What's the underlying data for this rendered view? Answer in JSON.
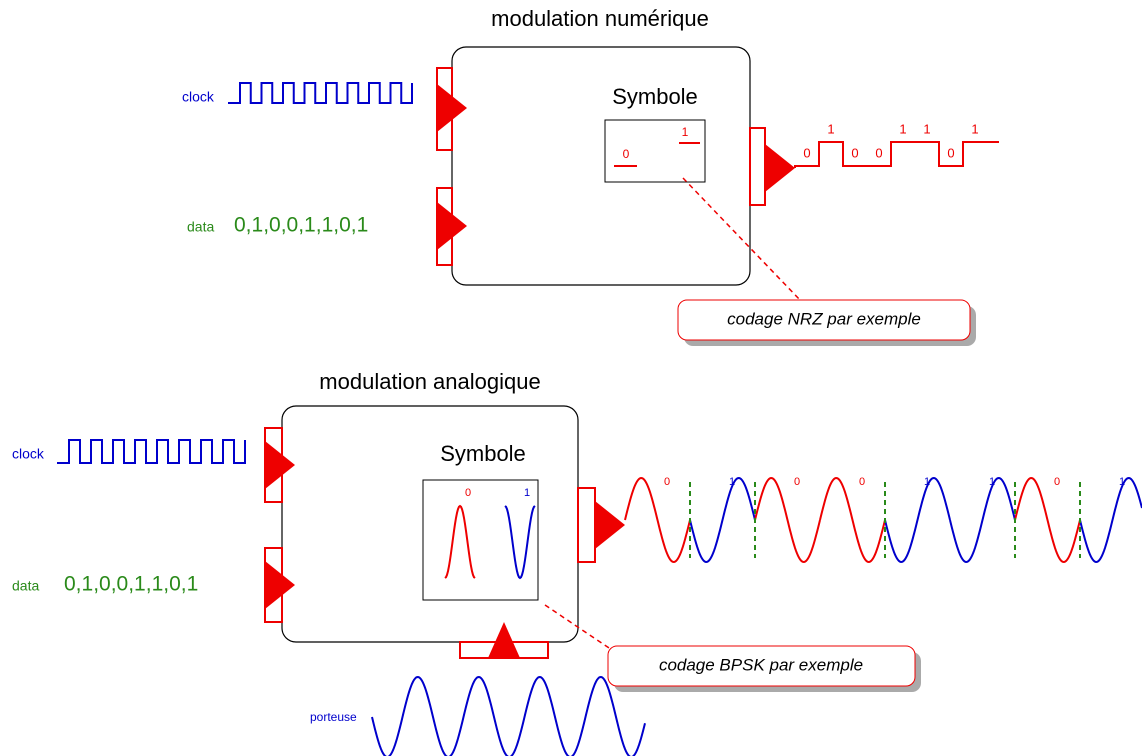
{
  "top": {
    "title": "modulation numérique",
    "clock_label": "clock",
    "data_label": "data",
    "data_sequence": "0,1,0,0,1,1,0,1",
    "symbol": {
      "title": "Symbole",
      "labels": [
        "0",
        "1"
      ]
    },
    "output_bits": [
      "0",
      "1",
      "0",
      "0",
      "1",
      "1",
      "0",
      "1"
    ],
    "callout": "codage NRZ par exemple"
  },
  "bottom": {
    "title": "modulation analogique",
    "clock_label": "clock",
    "data_label": "data",
    "data_sequence": "0,1,0,0,1,1,0,1",
    "symbol": {
      "title": "Symbole",
      "labels": [
        "0",
        "1"
      ]
    },
    "output_bits": [
      "0",
      "1",
      "0",
      "0",
      "1",
      "1",
      "0",
      "1"
    ],
    "callout": "codage BPSK par exemple",
    "carrier_label": "porteuse"
  }
}
